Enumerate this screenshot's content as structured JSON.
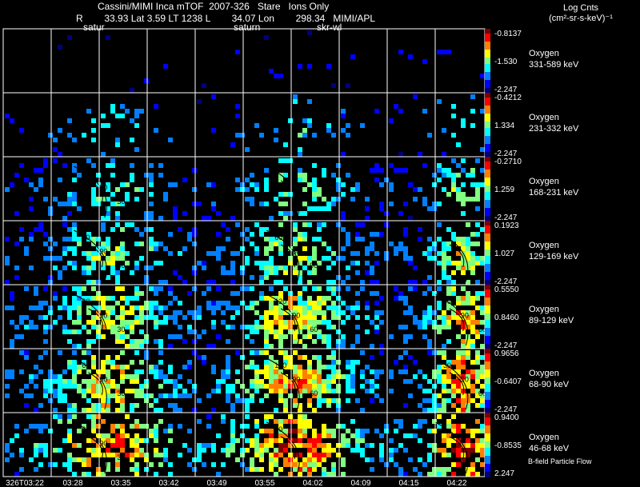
{
  "header": {
    "title": "Cassini/MIMI Inca mTOF  2007-326   Stare   Ions Only",
    "subtitle": "R        33.93 Lat 3.59 LT 1238 L        34.07 Lon        298.34   MIMI/APL",
    "markers": [
      "satur",
      "saturn",
      "skr-wl"
    ],
    "units_line1": "Log Cnts",
    "units_line2": "(cm²-sr-s-keV)⁻¹"
  },
  "footer": {
    "bfield_label": "B-field Particle Flow"
  },
  "chart_data": {
    "type": "heatmap",
    "title": "Cassini/MIMI Inca mTOF  2007-326   Stare   Ions Only",
    "x_ticks": [
      "326T03:22",
      "03:28",
      "03:35",
      "03:42",
      "03:49",
      "03:55",
      "04:02",
      "04:09",
      "04:15",
      "04:22"
    ],
    "colorscale": [
      "#000080",
      "#0000ff",
      "#0080ff",
      "#00ffff",
      "#80ff80",
      "#ffff00",
      "#ff8000",
      "#ff0000",
      "#800000"
    ],
    "panels": [
      {
        "species": "Oxygen",
        "energy": "331-589 keV",
        "cmax": "-0.8137",
        "cmid": "-1.530",
        "cmin": "-2.247",
        "density": 0.03,
        "level": 0.1,
        "contours": []
      },
      {
        "species": "Oxygen",
        "energy": "231-332 keV",
        "cmax": "-0.4212",
        "cmid": "1.334",
        "cmin": "-2.247",
        "density": 0.12,
        "level": 0.3,
        "contours": []
      },
      {
        "species": "Oxygen",
        "energy": "168-231 keV",
        "cmax": "-0.2710",
        "cmid": "1.259",
        "cmin": "-2.247",
        "density": 0.32,
        "level": 0.38,
        "contours": [
          "30",
          "90",
          "30"
        ]
      },
      {
        "species": "Oxygen",
        "energy": "129-169 keV",
        "cmax": "0.1923",
        "cmid": "1.027",
        "cmin": "-2.247",
        "density": 0.5,
        "level": 0.45,
        "contours": [
          "60",
          "90",
          "30",
          "60",
          "30",
          "90"
        ]
      },
      {
        "species": "Oxygen",
        "energy": "89-129 keV",
        "cmax": "0.5550",
        "cmid": "0.8460",
        "cmin": "-2.247",
        "density": 0.72,
        "level": 0.55,
        "contours": [
          "60",
          "90",
          "30",
          "120",
          "90",
          "60",
          "30",
          "90",
          "60"
        ]
      },
      {
        "species": "Oxygen",
        "energy": "68-90 keV",
        "cmax": "0.9656",
        "cmid": "-0.6407",
        "cmin": "-2.247",
        "density": 0.72,
        "level": 0.6,
        "contours": [
          "60",
          "90",
          "30",
          "120",
          "90",
          "60",
          "30",
          "90",
          "60"
        ]
      },
      {
        "species": "Oxygen",
        "energy": "46-68 keV",
        "cmax": "0.9400",
        "cmid": "-0.8535",
        "cmin": "2.247",
        "density": 0.62,
        "level": 0.72,
        "contours": [
          "60",
          "90",
          "30",
          "60"
        ]
      }
    ]
  }
}
